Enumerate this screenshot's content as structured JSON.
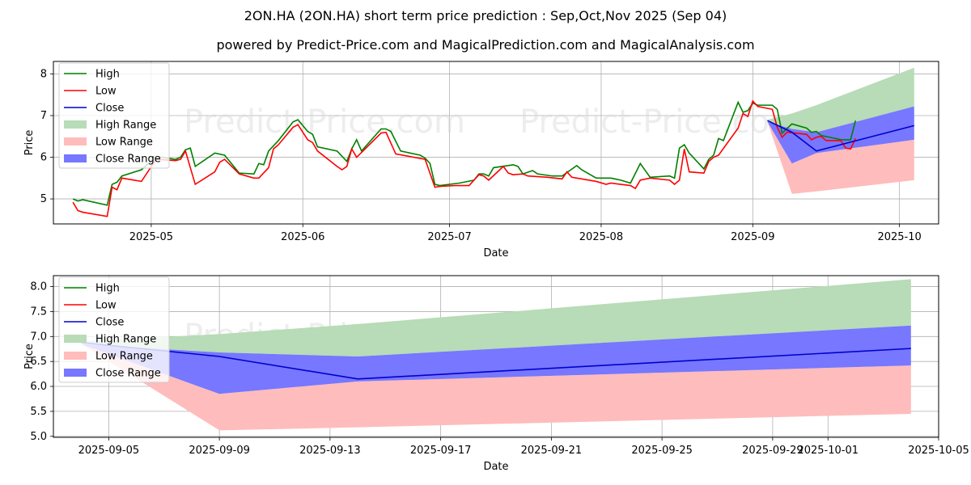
{
  "title": "2ON.HA (2ON.HA) short term price prediction : Sep,Oct,Nov 2025 (Sep 04)",
  "subtitle": "powered by Predict-Price.com and MagicalPrediction.com and MagicalAnalysis.com",
  "watermark": "Predict-Price.com",
  "colors": {
    "high": "#008000",
    "low": "#ff0000",
    "close": "#0000cc",
    "high_range": "#b7dcb7",
    "low_range": "#ffbcbc",
    "close_range": "#7777ff"
  },
  "chart_data": [
    {
      "type": "line",
      "xlabel": "Date",
      "ylabel": "Price",
      "xlim": [
        "2025-04-11",
        "2025-10-09"
      ],
      "ylim": [
        4.4,
        8.3
      ],
      "xticks": [
        "2025-05",
        "2025-06",
        "2025-07",
        "2025-08",
        "2025-09",
        "2025-10"
      ],
      "xtick_dates": [
        "2025-05-01",
        "2025-06-01",
        "2025-07-01",
        "2025-08-01",
        "2025-09-01",
        "2025-10-01"
      ],
      "yticks": [
        5,
        6,
        7,
        8
      ],
      "grid": true,
      "legend_position": "top-left",
      "legend": [
        "High",
        "Low",
        "Close",
        "High Range",
        "Low Range",
        "Close Range"
      ],
      "series": [
        {
          "name": "High",
          "points": [
            [
              "2025-04-15",
              5.0
            ],
            [
              "2025-04-16",
              4.95
            ],
            [
              "2025-04-17",
              4.98
            ],
            [
              "2025-04-22",
              4.85
            ],
            [
              "2025-04-23",
              5.35
            ],
            [
              "2025-04-24",
              5.4
            ],
            [
              "2025-04-25",
              5.55
            ],
            [
              "2025-04-29",
              5.7
            ],
            [
              "2025-05-02",
              6.02
            ],
            [
              "2025-05-06",
              5.95
            ],
            [
              "2025-05-07",
              6.0
            ],
            [
              "2025-05-08",
              6.18
            ],
            [
              "2025-05-09",
              6.22
            ],
            [
              "2025-05-10",
              5.78
            ],
            [
              "2025-05-14",
              6.1
            ],
            [
              "2025-05-16",
              6.05
            ],
            [
              "2025-05-19",
              5.62
            ],
            [
              "2025-05-22",
              5.6
            ],
            [
              "2025-05-23",
              5.85
            ],
            [
              "2025-05-24",
              5.82
            ],
            [
              "2025-05-25",
              6.15
            ],
            [
              "2025-05-27",
              6.4
            ],
            [
              "2025-05-30",
              6.85
            ],
            [
              "2025-05-31",
              6.9
            ],
            [
              "2025-06-02",
              6.62
            ],
            [
              "2025-06-03",
              6.55
            ],
            [
              "2025-06-04",
              6.25
            ],
            [
              "2025-06-08",
              6.15
            ],
            [
              "2025-06-10",
              5.9
            ],
            [
              "2025-06-11",
              6.2
            ],
            [
              "2025-06-12",
              6.42
            ],
            [
              "2025-06-13",
              6.15
            ],
            [
              "2025-06-17",
              6.68
            ],
            [
              "2025-06-18",
              6.68
            ],
            [
              "2025-06-19",
              6.62
            ],
            [
              "2025-06-21",
              6.15
            ],
            [
              "2025-06-25",
              6.05
            ],
            [
              "2025-06-26",
              5.98
            ],
            [
              "2025-06-27",
              5.85
            ],
            [
              "2025-06-28",
              5.35
            ],
            [
              "2025-06-29",
              5.32
            ],
            [
              "2025-07-03",
              5.38
            ],
            [
              "2025-07-06",
              5.45
            ],
            [
              "2025-07-07",
              5.6
            ],
            [
              "2025-07-08",
              5.6
            ],
            [
              "2025-07-09",
              5.55
            ],
            [
              "2025-07-10",
              5.75
            ],
            [
              "2025-07-13",
              5.8
            ],
            [
              "2025-07-14",
              5.82
            ],
            [
              "2025-07-15",
              5.78
            ],
            [
              "2025-07-16",
              5.6
            ],
            [
              "2025-07-18",
              5.68
            ],
            [
              "2025-07-19",
              5.6
            ],
            [
              "2025-07-22",
              5.55
            ],
            [
              "2025-07-24",
              5.55
            ],
            [
              "2025-07-27",
              5.8
            ],
            [
              "2025-07-28",
              5.7
            ],
            [
              "2025-07-31",
              5.5
            ],
            [
              "2025-08-03",
              5.5
            ],
            [
              "2025-08-05",
              5.45
            ],
            [
              "2025-08-07",
              5.38
            ],
            [
              "2025-08-09",
              5.85
            ],
            [
              "2025-08-11",
              5.52
            ],
            [
              "2025-08-15",
              5.55
            ],
            [
              "2025-08-16",
              5.5
            ],
            [
              "2025-08-17",
              6.22
            ],
            [
              "2025-08-18",
              6.3
            ],
            [
              "2025-08-19",
              6.1
            ],
            [
              "2025-08-22",
              5.72
            ],
            [
              "2025-08-23",
              5.95
            ],
            [
              "2025-08-24",
              6.05
            ],
            [
              "2025-08-25",
              6.45
            ],
            [
              "2025-08-26",
              6.4
            ],
            [
              "2025-08-29",
              7.32
            ],
            [
              "2025-08-30",
              7.08
            ],
            [
              "2025-08-31",
              7.12
            ],
            [
              "2025-09-01",
              7.3
            ],
            [
              "2025-09-02",
              7.25
            ],
            [
              "2025-09-03",
              7.25
            ],
            [
              "2025-09-05",
              7.25
            ],
            [
              "2025-09-06",
              7.15
            ],
            [
              "2025-09-07",
              6.58
            ],
            [
              "2025-09-09",
              6.8
            ],
            [
              "2025-09-12",
              6.7
            ],
            [
              "2025-09-13",
              6.6
            ],
            [
              "2025-09-14",
              6.62
            ],
            [
              "2025-09-15",
              6.52
            ],
            [
              "2025-09-18",
              6.45
            ],
            [
              "2025-09-19",
              6.42
            ],
            [
              "2025-09-20",
              6.42
            ],
            [
              "2025-09-21",
              6.42
            ],
            [
              "2025-09-22",
              6.88
            ]
          ]
        },
        {
          "name": "Low",
          "points": [
            [
              "2025-04-15",
              4.92
            ],
            [
              "2025-04-16",
              4.72
            ],
            [
              "2025-04-17",
              4.68
            ],
            [
              "2025-04-22",
              4.58
            ],
            [
              "2025-04-23",
              5.28
            ],
            [
              "2025-04-24",
              5.22
            ],
            [
              "2025-04-25",
              5.5
            ],
            [
              "2025-04-29",
              5.42
            ],
            [
              "2025-05-02",
              5.95
            ],
            [
              "2025-05-06",
              5.92
            ],
            [
              "2025-05-07",
              5.95
            ],
            [
              "2025-05-08",
              6.15
            ],
            [
              "2025-05-09",
              5.75
            ],
            [
              "2025-05-10",
              5.35
            ],
            [
              "2025-05-14",
              5.65
            ],
            [
              "2025-05-15",
              5.88
            ],
            [
              "2025-05-16",
              5.95
            ],
            [
              "2025-05-19",
              5.6
            ],
            [
              "2025-05-22",
              5.5
            ],
            [
              "2025-05-23",
              5.5
            ],
            [
              "2025-05-25",
              5.75
            ],
            [
              "2025-05-26",
              6.2
            ],
            [
              "2025-05-27",
              6.3
            ],
            [
              "2025-05-30",
              6.72
            ],
            [
              "2025-05-31",
              6.78
            ],
            [
              "2025-06-02",
              6.42
            ],
            [
              "2025-06-03",
              6.35
            ],
            [
              "2025-06-04",
              6.15
            ],
            [
              "2025-06-08",
              5.78
            ],
            [
              "2025-06-09",
              5.7
            ],
            [
              "2025-06-10",
              5.78
            ],
            [
              "2025-06-11",
              6.2
            ],
            [
              "2025-06-12",
              6.0
            ],
            [
              "2025-06-17",
              6.58
            ],
            [
              "2025-06-18",
              6.6
            ],
            [
              "2025-06-20",
              6.08
            ],
            [
              "2025-06-26",
              5.95
            ],
            [
              "2025-06-28",
              5.28
            ],
            [
              "2025-06-29",
              5.3
            ],
            [
              "2025-07-02",
              5.32
            ],
            [
              "2025-07-05",
              5.32
            ],
            [
              "2025-07-06",
              5.45
            ],
            [
              "2025-07-07",
              5.58
            ],
            [
              "2025-07-08",
              5.55
            ],
            [
              "2025-07-09",
              5.45
            ],
            [
              "2025-07-12",
              5.78
            ],
            [
              "2025-07-13",
              5.62
            ],
            [
              "2025-07-14",
              5.58
            ],
            [
              "2025-07-16",
              5.6
            ],
            [
              "2025-07-17",
              5.55
            ],
            [
              "2025-07-21",
              5.52
            ],
            [
              "2025-07-24",
              5.48
            ],
            [
              "2025-07-25",
              5.65
            ],
            [
              "2025-07-26",
              5.52
            ],
            [
              "2025-07-28",
              5.48
            ],
            [
              "2025-07-31",
              5.42
            ],
            [
              "2025-08-02",
              5.35
            ],
            [
              "2025-08-03",
              5.38
            ],
            [
              "2025-08-07",
              5.32
            ],
            [
              "2025-08-08",
              5.25
            ],
            [
              "2025-08-09",
              5.45
            ],
            [
              "2025-08-11",
              5.5
            ],
            [
              "2025-08-15",
              5.45
            ],
            [
              "2025-08-16",
              5.35
            ],
            [
              "2025-08-17",
              5.45
            ],
            [
              "2025-08-18",
              6.2
            ],
            [
              "2025-08-19",
              5.65
            ],
            [
              "2025-08-22",
              5.62
            ],
            [
              "2025-08-23",
              5.9
            ],
            [
              "2025-08-24",
              6.0
            ],
            [
              "2025-08-25",
              6.05
            ],
            [
              "2025-08-29",
              6.7
            ],
            [
              "2025-08-30",
              7.05
            ],
            [
              "2025-08-31",
              6.98
            ],
            [
              "2025-09-01",
              7.35
            ],
            [
              "2025-09-02",
              7.22
            ],
            [
              "2025-09-05",
              7.15
            ],
            [
              "2025-09-06",
              6.72
            ],
            [
              "2025-09-07",
              6.48
            ],
            [
              "2025-09-08",
              6.6
            ],
            [
              "2025-09-12",
              6.55
            ],
            [
              "2025-09-13",
              6.42
            ],
            [
              "2025-09-14",
              6.48
            ],
            [
              "2025-09-15",
              6.5
            ],
            [
              "2025-09-16",
              6.4
            ],
            [
              "2025-09-19",
              6.4
            ],
            [
              "2025-09-20",
              6.22
            ],
            [
              "2025-09-21",
              6.2
            ],
            [
              "2025-09-22",
              6.45
            ]
          ]
        }
      ],
      "forecast": {
        "dates": [
          "2025-09-04",
          "2025-09-09",
          "2025-09-14",
          "2025-10-04"
        ],
        "high": [
          6.9,
          7.05,
          7.25,
          8.15
        ],
        "close": [
          6.88,
          6.6,
          6.15,
          6.76
        ],
        "close_range": [
          [
            6.85,
            6.85
          ],
          [
            5.85,
            6.68
          ],
          [
            6.1,
            6.6
          ],
          [
            6.42,
            7.22
          ]
        ],
        "low_range": [
          [
            6.85,
            6.85
          ],
          [
            5.12,
            5.85
          ],
          [
            5.18,
            6.1
          ],
          [
            5.45,
            6.42
          ]
        ],
        "high_range": [
          [
            6.85,
            6.9
          ],
          [
            6.68,
            7.05
          ],
          [
            6.6,
            7.25
          ],
          [
            7.22,
            8.15
          ]
        ]
      }
    },
    {
      "type": "line",
      "xlabel": "Date",
      "ylabel": "Price",
      "xlim": [
        "2025-09-03",
        "2025-10-05"
      ],
      "ylim": [
        4.98,
        8.22
      ],
      "xticks": [
        "2025-09-05",
        "2025-09-09",
        "2025-09-13",
        "2025-09-17",
        "2025-09-21",
        "2025-09-25",
        "2025-09-29",
        "2025-10-01",
        "2025-10-05"
      ],
      "yticks": [
        5.0,
        5.5,
        6.0,
        6.5,
        7.0,
        7.5,
        8.0
      ],
      "ytick_labels": [
        "5.0",
        "5.5",
        "6.0",
        "6.5",
        "7.0",
        "7.5",
        "8.0"
      ],
      "grid": true,
      "legend_position": "top-left",
      "legend": [
        "High",
        "Low",
        "Close",
        "High Range",
        "Low Range",
        "Close Range"
      ]
    }
  ]
}
